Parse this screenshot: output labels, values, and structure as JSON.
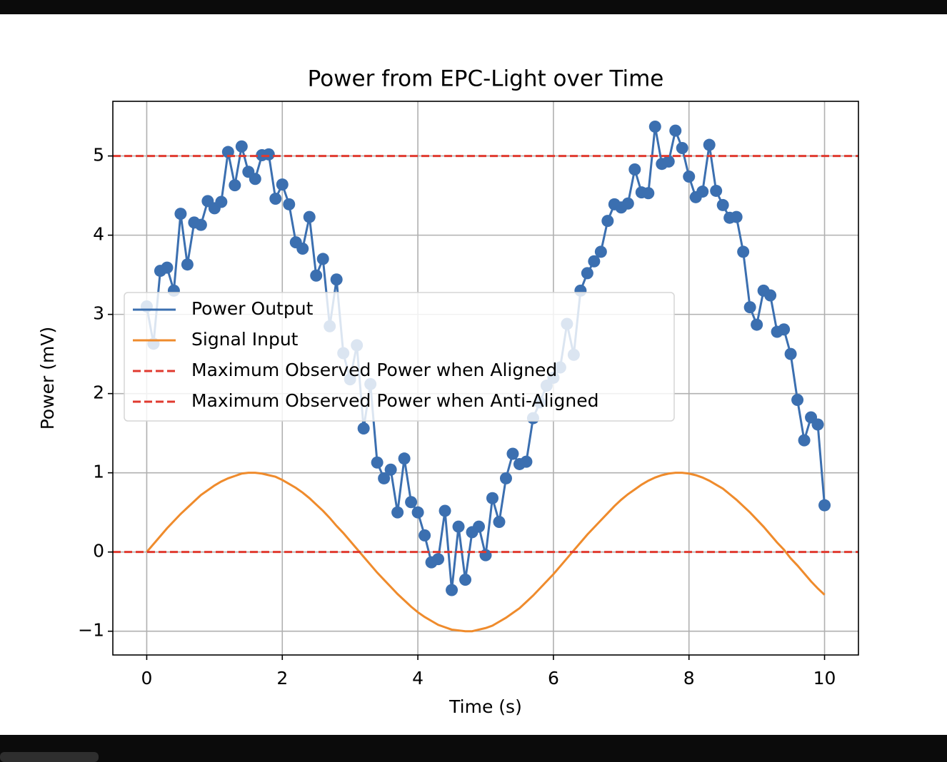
{
  "chart_data": {
    "type": "line",
    "title": "Power from EPC-Light over Time",
    "xlabel": "Time (s)",
    "ylabel": "Power (mV)",
    "x": [
      0,
      0.1,
      0.2,
      0.3,
      0.4,
      0.5,
      0.6,
      0.7,
      0.8,
      0.9,
      1,
      1.1,
      1.2,
      1.3,
      1.4,
      1.5,
      1.6,
      1.7,
      1.8,
      1.9,
      2,
      2.1,
      2.2,
      2.3,
      2.4,
      2.5,
      2.6,
      2.7,
      2.8,
      2.9,
      3,
      3.1,
      3.2,
      3.3,
      3.4,
      3.5,
      3.6,
      3.7,
      3.8,
      3.9,
      4,
      4.1,
      4.2,
      4.3,
      4.4,
      4.5,
      4.6,
      4.7,
      4.8,
      4.9,
      5,
      5.1,
      5.2,
      5.3,
      5.4,
      5.5,
      5.6,
      5.7,
      5.8,
      5.9,
      6,
      6.1,
      6.2,
      6.3,
      6.4,
      6.5,
      6.6,
      6.7,
      6.8,
      6.9,
      7,
      7.1,
      7.2,
      7.3,
      7.4,
      7.5,
      7.6,
      7.7,
      7.8,
      7.9,
      8,
      8.1,
      8.2,
      8.3,
      8.4,
      8.5,
      8.6,
      8.7,
      8.8,
      8.9,
      9,
      9.1,
      9.2,
      9.3,
      9.4,
      9.5,
      9.6,
      9.7,
      9.8,
      9.9,
      10
    ],
    "series": [
      {
        "name": "Power Output",
        "color": "#3b6fb0",
        "markers": true,
        "values": [
          3.1,
          2.63,
          3.55,
          3.59,
          3.3,
          4.27,
          3.63,
          4.16,
          4.13,
          4.43,
          4.34,
          4.42,
          5.05,
          4.63,
          5.12,
          4.8,
          4.71,
          5.01,
          5.02,
          4.46,
          4.64,
          4.39,
          3.91,
          3.83,
          4.23,
          3.49,
          3.7,
          2.85,
          3.44,
          2.51,
          2.18,
          2.61,
          1.56,
          2.12,
          1.13,
          0.93,
          1.04,
          0.5,
          1.18,
          0.63,
          0.5,
          0.21,
          -0.13,
          -0.09,
          0.52,
          -0.48,
          0.32,
          -0.35,
          0.25,
          0.32,
          -0.04,
          0.68,
          0.38,
          0.93,
          1.24,
          1.11,
          1.14,
          1.69,
          1.89,
          2.1,
          2.2,
          2.33,
          2.88,
          2.49,
          3.3,
          3.52,
          3.67,
          3.79,
          4.18,
          4.39,
          4.35,
          4.4,
          4.83,
          4.54,
          4.53,
          5.37,
          4.9,
          4.93,
          5.32,
          5.1,
          4.74,
          4.48,
          4.55,
          5.14,
          4.56,
          4.38,
          4.22,
          4.23,
          3.79,
          3.09,
          2.87,
          3.3,
          3.24,
          2.78,
          2.81,
          2.5,
          1.92,
          1.41,
          1.7,
          1.61,
          0.59
        ]
      },
      {
        "name": "Signal Input",
        "color": "#ef8b2c",
        "markers": false,
        "values": [
          0,
          0.1,
          0.2,
          0.3,
          0.39,
          0.48,
          0.56,
          0.64,
          0.72,
          0.78,
          0.84,
          0.89,
          0.93,
          0.96,
          0.99,
          1.0,
          1.0,
          0.99,
          0.97,
          0.95,
          0.91,
          0.86,
          0.81,
          0.75,
          0.68,
          0.6,
          0.52,
          0.43,
          0.33,
          0.24,
          0.14,
          0.04,
          -0.06,
          -0.16,
          -0.26,
          -0.35,
          -0.44,
          -0.53,
          -0.61,
          -0.69,
          -0.76,
          -0.82,
          -0.87,
          -0.92,
          -0.95,
          -0.98,
          -0.99,
          -1.0,
          -1.0,
          -0.98,
          -0.96,
          -0.93,
          -0.88,
          -0.83,
          -0.77,
          -0.71,
          -0.63,
          -0.55,
          -0.46,
          -0.37,
          -0.28,
          -0.18,
          -0.08,
          0.02,
          0.12,
          0.22,
          0.31,
          0.4,
          0.49,
          0.58,
          0.66,
          0.73,
          0.79,
          0.85,
          0.9,
          0.94,
          0.97,
          0.99,
          1.0,
          1.0,
          0.99,
          0.97,
          0.94,
          0.9,
          0.85,
          0.8,
          0.73,
          0.66,
          0.58,
          0.5,
          0.41,
          0.32,
          0.22,
          0.12,
          0.03,
          -0.08,
          -0.17,
          -0.27,
          -0.37,
          -0.46,
          -0.54
        ]
      }
    ],
    "hlines": [
      {
        "name": "Maximum Observed Power when Aligned",
        "value": 5,
        "color": "#e03a2f"
      },
      {
        "name": "Maximum Observed Power when Anti-Aligned",
        "value": 0,
        "color": "#e03a2f"
      }
    ],
    "xlim": [
      -0.5,
      10.5
    ],
    "ylim": [
      -1.3,
      5.69
    ],
    "xticks": [
      0,
      2,
      4,
      6,
      8,
      10
    ],
    "yticks": [
      {
        "value": -1,
        "label": "−1"
      },
      0,
      1,
      2,
      3,
      4,
      5
    ],
    "grid": true,
    "legend": "center left"
  }
}
